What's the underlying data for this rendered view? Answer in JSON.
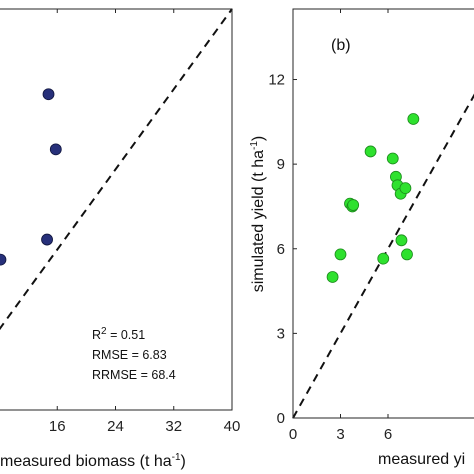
{
  "chart_data": [
    {
      "panel": "a",
      "type": "scatter",
      "title": "",
      "xlabel": {
        "prefix": "measured biomass (t ha",
        "sup": "-1",
        "suffix": ")"
      },
      "ylabel": "",
      "xlim": [
        8,
        40
      ],
      "ylim": [
        0,
        40
      ],
      "xticks": [
        16,
        24,
        32,
        40
      ],
      "xtick_labels": [
        "16",
        "24",
        "32",
        "40"
      ],
      "one_to_one_line": true,
      "grid": false,
      "marker_color": "#27307a",
      "marker_edge": "#10153d",
      "series": [
        {
          "x": [
            14.8,
            15.8,
            14.6,
            8.2
          ],
          "y": [
            31.5,
            26.0,
            17.0,
            15.0
          ]
        }
      ],
      "stats": {
        "r2_label": "R",
        "r2_sup": "2",
        "r2_value": " = 0.51",
        "rmse": "RMSE = 6.83",
        "rrmse": "RRMSE = 68.4"
      }
    },
    {
      "panel": "b",
      "panel_label": "(b)",
      "type": "scatter",
      "title": "",
      "xlabel": {
        "prefix": "measured yi",
        "sup": "",
        "suffix": ""
      },
      "ylabel": {
        "prefix": "simulated yield (t ha",
        "sup": "-1",
        "suffix": ")"
      },
      "xlim": [
        0,
        12
      ],
      "ylim": [
        0,
        14.5
      ],
      "xticks": [
        0,
        3,
        6
      ],
      "xtick_labels": [
        "0",
        "3",
        "6"
      ],
      "yticks": [
        0,
        3,
        6,
        9,
        12
      ],
      "ytick_labels": [
        "0",
        "3",
        "6",
        "9",
        "12"
      ],
      "one_to_one_line": true,
      "grid": false,
      "marker_color": "#2ee12e",
      "marker_edge": "#1c8a1c",
      "series": [
        {
          "x": [
            2.5,
            3.0,
            3.6,
            3.75,
            3.8,
            4.9,
            5.7,
            6.3,
            6.5,
            6.6,
            6.8,
            6.85,
            7.1,
            7.2,
            7.6
          ],
          "y": [
            5.0,
            5.8,
            7.6,
            7.5,
            7.55,
            9.45,
            5.65,
            9.2,
            8.55,
            8.25,
            7.95,
            6.3,
            8.15,
            5.8,
            10.6
          ]
        }
      ]
    }
  ]
}
